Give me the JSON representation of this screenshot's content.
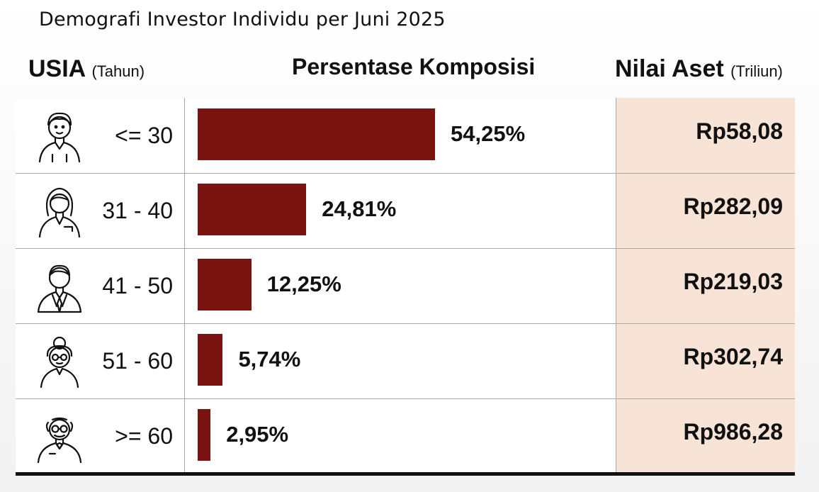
{
  "header": {
    "title": "Demografi Investor Individu per Juni 2025",
    "usia_label": "USIA",
    "usia_unit": "(Tahun)",
    "komposisi_label": "Persentase Komposisi",
    "nilai_label": "Nilai Aset",
    "nilai_unit": "(Triliun)"
  },
  "chart_data": {
    "type": "bar",
    "orientation": "horizontal",
    "title": "Demografi Investor Individu per Juni 2025",
    "categories": [
      "<= 30",
      "31 - 40",
      "41 - 50",
      "51 - 60",
      ">= 60"
    ],
    "series": [
      {
        "name": "Persentase Komposisi",
        "values": [
          54.25,
          24.81,
          12.25,
          5.74,
          2.95
        ]
      }
    ],
    "value_labels": [
      "54,25%",
      "24,81%",
      "12,25%",
      "5,74%",
      "2,95%"
    ],
    "nilai_aset_labels": [
      "Rp58,08",
      "Rp282,09",
      "Rp219,03",
      "Rp302,74",
      "Rp986,28"
    ],
    "nilai_aset_values": [
      58.08,
      282.09,
      219.03,
      302.74,
      986.28
    ],
    "xlim": [
      0,
      54.25
    ],
    "grid": false,
    "legend": "none",
    "bar_color": "#7a1410",
    "nilai_column_color": "#f8e4d6"
  },
  "icons": [
    "young-person-icon",
    "woman-icon",
    "man-suit-icon",
    "older-woman-glasses-icon",
    "elderly-man-glasses-icon"
  ]
}
